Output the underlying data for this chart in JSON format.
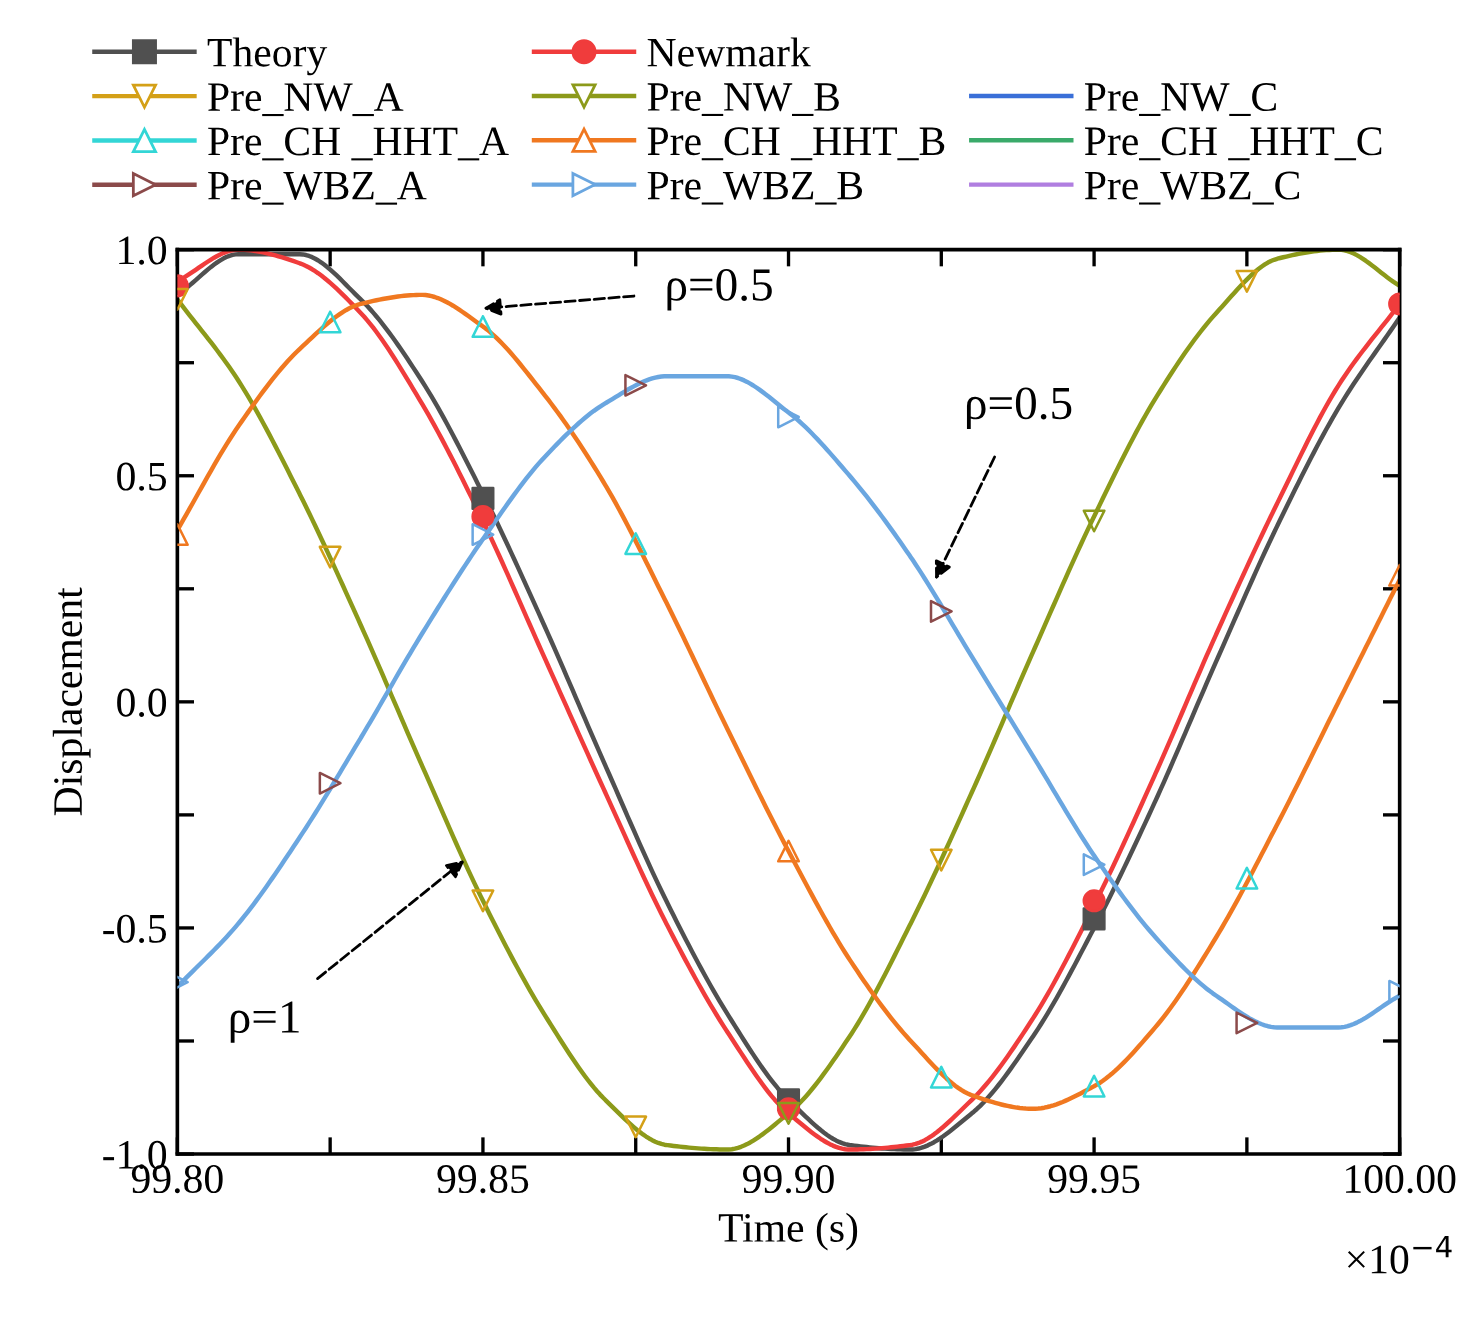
{
  "chart_data": {
    "type": "line",
    "xlabel": "Time (s)",
    "ylabel": "Displacement",
    "legend": "top",
    "grid": false,
    "xlim": [
      99.8,
      100.0
    ],
    "ylim": [
      -1.0,
      1.0
    ],
    "xticks": [
      {
        "value": 99.8,
        "label": "99.80"
      },
      {
        "value": 99.825,
        "label": null
      },
      {
        "value": 99.85,
        "label": "99.85"
      },
      {
        "value": 99.875,
        "label": null
      },
      {
        "value": 99.9,
        "label": "99.90"
      },
      {
        "value": 99.925,
        "label": null
      },
      {
        "value": 99.95,
        "label": "99.95"
      },
      {
        "value": 99.975,
        "label": null
      },
      {
        "value": 100.0,
        "label": "100.00"
      }
    ],
    "yticks": [
      {
        "value": -1.0,
        "label": "-1.0"
      },
      {
        "value": -0.75,
        "label": null
      },
      {
        "value": -0.5,
        "label": "-0.5"
      },
      {
        "value": -0.25,
        "label": null
      },
      {
        "value": 0.0,
        "label": "0.0"
      },
      {
        "value": 0.25,
        "label": null
      },
      {
        "value": 0.5,
        "label": "0.5"
      },
      {
        "value": 0.75,
        "label": null
      },
      {
        "value": 1.0,
        "label": "1.0"
      }
    ],
    "x": [
      99.8,
      99.81,
      99.82,
      99.83,
      99.84,
      99.85,
      99.86,
      99.87,
      99.88,
      99.89,
      99.9,
      99.91,
      99.92,
      99.93,
      99.94,
      99.95,
      99.96,
      99.97,
      99.98,
      99.99,
      100.0
    ],
    "series": [
      {
        "name": "Theory",
        "color": "#505050",
        "values": [
          0.9,
          0.99,
          0.99,
          0.89,
          0.71,
          0.46,
          0.17,
          -0.14,
          -0.44,
          -0.69,
          -0.88,
          -0.98,
          -0.99,
          -0.91,
          -0.74,
          -0.5,
          -0.22,
          0.09,
          0.39,
          0.65,
          0.85
        ]
      },
      {
        "name": "Newmark",
        "color": "#f03c3c",
        "values": [
          0.93,
          1.0,
          0.97,
          0.86,
          0.66,
          0.4,
          0.1,
          -0.2,
          -0.49,
          -0.73,
          -0.91,
          -0.99,
          -0.98,
          -0.88,
          -0.7,
          -0.45,
          -0.16,
          0.15,
          0.44,
          0.7,
          0.88
        ]
      },
      {
        "name": "Pre_NW_A",
        "color": "#d4a017",
        "values": [
          null,
          null,
          null,
          null,
          null,
          null,
          null,
          null,
          null,
          null,
          null,
          null,
          null,
          null,
          null,
          null,
          null,
          null,
          null,
          null,
          null
        ]
      },
      {
        "name": "Pre_NW_B",
        "color": "#8c9a1a",
        "values": [
          0.89,
          0.71,
          0.46,
          0.17,
          -0.14,
          -0.44,
          -0.69,
          -0.88,
          -0.98,
          -0.99,
          -0.91,
          -0.74,
          -0.49,
          -0.2,
          0.11,
          0.41,
          0.67,
          0.86,
          0.98,
          1.0,
          0.92
        ]
      },
      {
        "name": "Pre_NW_C",
        "color": "#3a6fd8",
        "values": [
          null,
          null,
          null,
          null,
          null,
          null,
          null,
          null,
          null,
          null,
          null,
          null,
          null,
          null,
          null,
          null,
          null,
          null,
          null,
          null,
          null
        ]
      },
      {
        "name": "Pre_CH _HHT_A",
        "color": "#33d6d6",
        "values": [
          null,
          null,
          null,
          null,
          null,
          null,
          null,
          null,
          null,
          null,
          null,
          null,
          null,
          null,
          null,
          null,
          null,
          null,
          null,
          null,
          null
        ]
      },
      {
        "name": "Pre_CH _HHT_B",
        "color": "#f07820",
        "values": [
          0.38,
          0.61,
          0.78,
          0.88,
          0.9,
          0.83,
          0.68,
          0.48,
          0.22,
          -0.06,
          -0.33,
          -0.57,
          -0.75,
          -0.87,
          -0.9,
          -0.85,
          -0.72,
          -0.52,
          -0.27,
          0.0,
          0.27
        ]
      },
      {
        "name": "Pre_CH _HHT_C",
        "color": "#3aaa6a",
        "values": [
          null,
          null,
          null,
          null,
          null,
          null,
          null,
          null,
          null,
          null,
          null,
          null,
          null,
          null,
          null,
          null,
          null,
          null,
          null,
          null,
          null
        ]
      },
      {
        "name": "Pre_WBZ_A",
        "color": "#8b4a4a",
        "values": [
          null,
          null,
          null,
          null,
          null,
          null,
          null,
          null,
          null,
          null,
          null,
          null,
          null,
          null,
          null,
          null,
          null,
          null,
          null,
          null,
          null
        ]
      },
      {
        "name": "Pre_WBZ_B",
        "color": "#6aa6e0",
        "values": [
          -0.63,
          -0.49,
          -0.3,
          -0.08,
          0.15,
          0.36,
          0.54,
          0.66,
          0.72,
          0.72,
          0.64,
          0.5,
          0.32,
          0.1,
          -0.12,
          -0.34,
          -0.52,
          -0.65,
          -0.72,
          -0.72,
          -0.65
        ]
      },
      {
        "name": "Pre_WBZ_C",
        "color": "#b07ee0",
        "values": [
          null,
          null,
          null,
          null,
          null,
          null,
          null,
          null,
          null,
          null,
          null,
          null,
          null,
          null,
          null,
          null,
          null,
          null,
          null,
          null,
          null
        ]
      },
      {
        "type": "scatter",
        "color": "#505050",
        "marker": "square",
        "x": [
          99.85,
          99.9,
          99.95
        ],
        "values": [
          0.45,
          -0.88,
          -0.48
        ]
      },
      {
        "type": "scatter",
        "color": "#f03c3c",
        "marker": "circle",
        "x": [
          99.8,
          99.85,
          99.9,
          99.95,
          100.0
        ],
        "values": [
          0.92,
          0.41,
          -0.9,
          -0.44,
          0.88
        ]
      },
      {
        "type": "scatter",
        "color": "#d4a017",
        "marker": "triangle_down",
        "x": [
          99.8,
          99.825,
          99.85,
          99.875,
          99.925,
          99.975
        ],
        "values": [
          0.89,
          0.32,
          -0.44,
          -0.94,
          -0.35,
          0.93
        ]
      },
      {
        "type": "scatter",
        "color": "#8c9a1a",
        "marker": "triangle_down",
        "x": [
          99.9,
          99.95
        ],
        "values": [
          -0.91,
          0.4
        ]
      },
      {
        "type": "scatter",
        "color": "#33d6d6",
        "marker": "triangle",
        "x": [
          99.825,
          99.85,
          99.875,
          99.925,
          99.95,
          99.975
        ],
        "values": [
          0.84,
          0.83,
          0.35,
          -0.83,
          -0.85,
          -0.39
        ]
      },
      {
        "type": "scatter",
        "color": "#f07820",
        "marker": "triangle",
        "x": [
          99.8,
          99.9,
          100.0
        ],
        "values": [
          0.37,
          -0.33,
          0.28
        ]
      },
      {
        "type": "scatter",
        "color": "#8b4a4a",
        "marker": "triangle_right",
        "x": [
          99.825,
          99.875,
          99.925,
          99.975
        ],
        "values": [
          -0.18,
          0.7,
          0.2,
          -0.71
        ]
      },
      {
        "type": "scatter",
        "color": "#6aa6e0",
        "marker": "triangle_right",
        "x": [
          99.8,
          99.85,
          99.9,
          99.95,
          100.0
        ],
        "values": [
          -0.62,
          0.37,
          0.63,
          -0.36,
          -0.64
        ]
      }
    ],
    "annotations": [
      {
        "text": "ρ=0.5",
        "x": 99.85,
        "y": 0.87
      },
      {
        "text": "ρ=0.5",
        "x": 99.924,
        "y": 0.27
      },
      {
        "text": "ρ=1",
        "x": 99.847,
        "y": -0.35
      },
      "×10$^{−4}$"
    ]
  }
}
